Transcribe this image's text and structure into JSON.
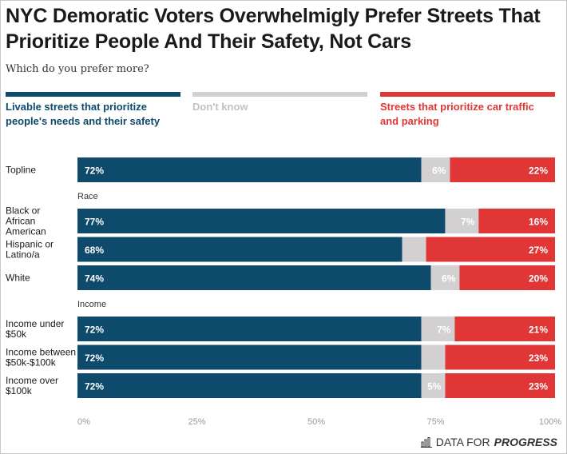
{
  "title": "NYC Demoratic Voters Overwhelmigly Prefer Streets That Prioritize People And Their Safety, Not Cars",
  "subtitle": "Which do you prefer more?",
  "legend": [
    {
      "label": "Livable streets that prioritize\npeople's needs and their safety",
      "color": "#0e4a6b"
    },
    {
      "label": "Don't know",
      "color": "#d3d0d2"
    },
    {
      "label": "Streets that prioritize car traffic\nand parking",
      "color": "#e03636"
    }
  ],
  "footer": {
    "brand_prefix": "DATA FOR",
    "brand_emph": "PROGRESS",
    "icon": "bar-chart-icon"
  },
  "chart_data": {
    "type": "bar",
    "orientation": "horizontal",
    "stacked": true,
    "xlim": [
      0,
      100
    ],
    "x_ticks": [
      "0%",
      "25%",
      "50%",
      "75%",
      "100%"
    ],
    "groups": [
      {
        "label": "",
        "rows": [
          {
            "label": "Topline",
            "values": [
              72,
              6,
              22
            ],
            "value_labels": [
              "72%",
              "6%",
              "22%"
            ]
          }
        ]
      },
      {
        "label": "Race",
        "rows": [
          {
            "label": "Black or African American",
            "values": [
              77,
              7,
              16
            ],
            "value_labels": [
              "77%",
              "7%",
              "16%"
            ]
          },
          {
            "label": "Hispanic or Latino/a",
            "values": [
              68,
              5,
              27
            ],
            "value_labels": [
              "68%",
              "",
              "27%"
            ]
          },
          {
            "label": "White",
            "values": [
              74,
              6,
              20
            ],
            "value_labels": [
              "74%",
              "6%",
              "20%"
            ]
          }
        ]
      },
      {
        "label": "Income",
        "rows": [
          {
            "label": "Income under $50k",
            "values": [
              72,
              7,
              21
            ],
            "value_labels": [
              "72%",
              "7%",
              "21%"
            ]
          },
          {
            "label": "Income between $50k-$100k",
            "values": [
              72,
              5,
              23
            ],
            "value_labels": [
              "72%",
              "",
              "23%"
            ]
          },
          {
            "label": "Income over $100k",
            "values": [
              72,
              5,
              23
            ],
            "value_labels": [
              "72%",
              "5%",
              "23%"
            ]
          }
        ]
      }
    ],
    "series": [
      {
        "name": "Livable streets that prioritize people's needs and their safety",
        "color": "#0e4a6b"
      },
      {
        "name": "Don't know",
        "color": "#d3d0d2"
      },
      {
        "name": "Streets that prioritize car traffic and parking",
        "color": "#e03636"
      }
    ]
  }
}
